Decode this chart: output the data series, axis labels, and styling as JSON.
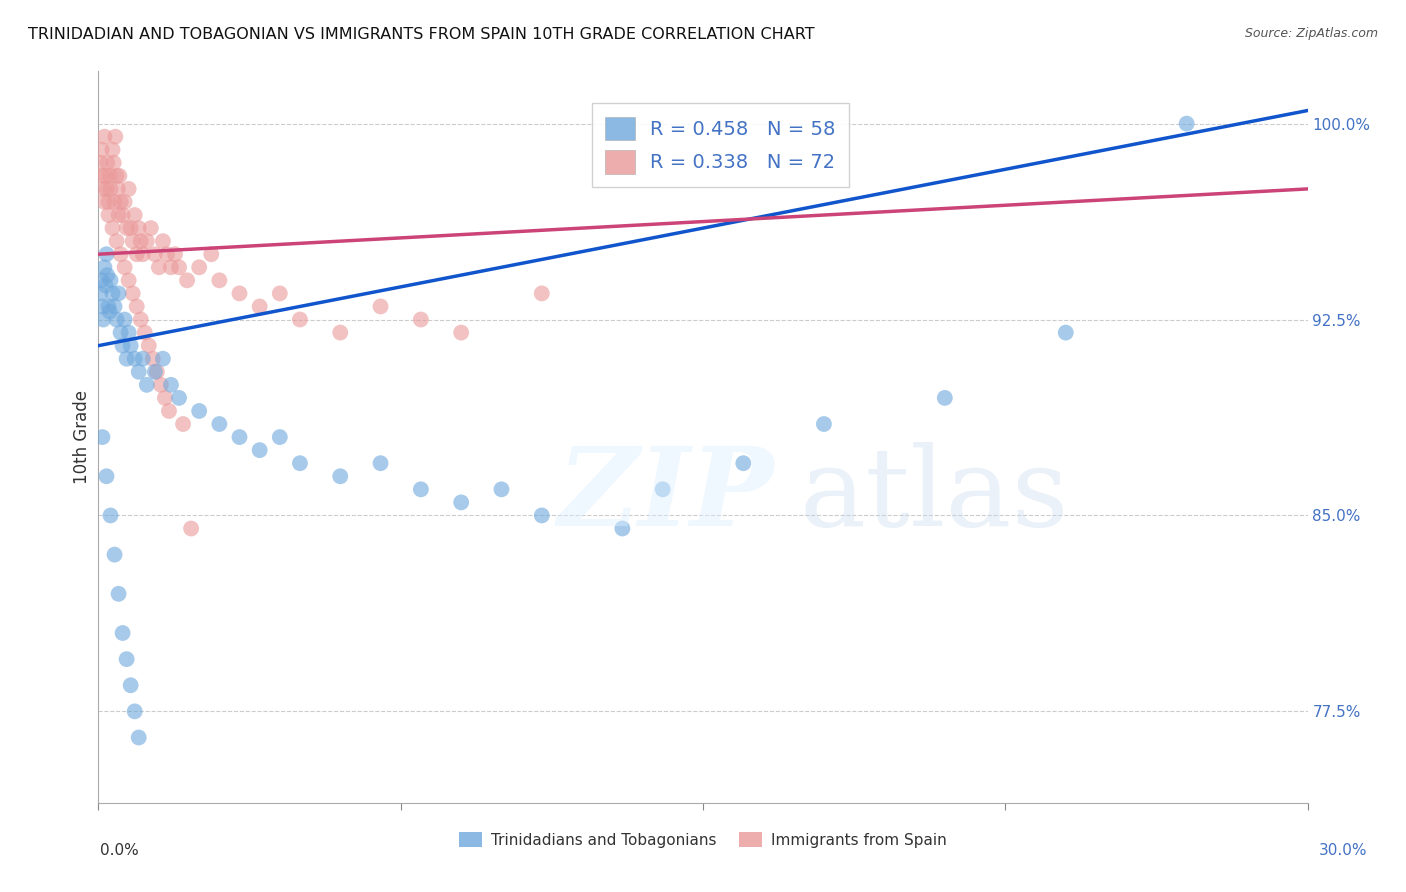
{
  "title": "TRINIDADIAN AND TOBAGONIAN VS IMMIGRANTS FROM SPAIN 10TH GRADE CORRELATION CHART",
  "source": "Source: ZipAtlas.com",
  "ylabel": "10th Grade",
  "xmin": 0.0,
  "xmax": 30.0,
  "ymin": 74.0,
  "ymax": 102.0,
  "yticks": [
    77.5,
    85.0,
    92.5,
    100.0
  ],
  "ytick_labels": [
    "77.5%",
    "85.0%",
    "92.5%",
    "100.0%"
  ],
  "xticks": [
    0.0,
    7.5,
    15.0,
    22.5,
    30.0
  ],
  "blue_color": "#6fa8dc",
  "pink_color": "#ea9999",
  "blue_line_color": "#1155cc",
  "pink_line_color": "#cc4477",
  "legend_blue_label": "R = 0.458   N = 58",
  "legend_pink_label": "R = 0.338   N = 72",
  "blue_bottom_label": "Trinidadians and Tobagonians",
  "pink_bottom_label": "Immigrants from Spain",
  "blue_scatter_x": [
    0.05,
    0.08,
    0.1,
    0.12,
    0.15,
    0.18,
    0.2,
    0.22,
    0.25,
    0.28,
    0.3,
    0.35,
    0.4,
    0.45,
    0.5,
    0.55,
    0.6,
    0.65,
    0.7,
    0.75,
    0.8,
    0.9,
    1.0,
    1.1,
    1.2,
    1.4,
    1.6,
    1.8,
    2.0,
    2.5,
    3.0,
    3.5,
    4.0,
    4.5,
    5.0,
    6.0,
    7.0,
    8.0,
    9.0,
    10.0,
    11.0,
    13.0,
    14.0,
    16.0,
    18.0,
    21.0,
    24.0,
    27.0,
    0.1,
    0.2,
    0.3,
    0.4,
    0.5,
    0.6,
    0.7,
    0.8,
    0.9,
    1.0
  ],
  "blue_scatter_y": [
    93.5,
    94.0,
    93.0,
    92.5,
    94.5,
    93.8,
    95.0,
    94.2,
    93.0,
    92.8,
    94.0,
    93.5,
    93.0,
    92.5,
    93.5,
    92.0,
    91.5,
    92.5,
    91.0,
    92.0,
    91.5,
    91.0,
    90.5,
    91.0,
    90.0,
    90.5,
    91.0,
    90.0,
    89.5,
    89.0,
    88.5,
    88.0,
    87.5,
    88.0,
    87.0,
    86.5,
    87.0,
    86.0,
    85.5,
    86.0,
    85.0,
    84.5,
    86.0,
    87.0,
    88.5,
    89.5,
    92.0,
    100.0,
    88.0,
    86.5,
    85.0,
    83.5,
    82.0,
    80.5,
    79.5,
    78.5,
    77.5,
    76.5
  ],
  "pink_scatter_x": [
    0.05,
    0.08,
    0.1,
    0.12,
    0.15,
    0.18,
    0.2,
    0.22,
    0.25,
    0.28,
    0.3,
    0.35,
    0.38,
    0.4,
    0.42,
    0.45,
    0.48,
    0.5,
    0.52,
    0.55,
    0.6,
    0.65,
    0.7,
    0.75,
    0.8,
    0.85,
    0.9,
    0.95,
    1.0,
    1.05,
    1.1,
    1.2,
    1.3,
    1.4,
    1.5,
    1.6,
    1.7,
    1.8,
    1.9,
    2.0,
    2.2,
    2.5,
    2.8,
    3.0,
    3.5,
    4.0,
    4.5,
    5.0,
    6.0,
    7.0,
    8.0,
    9.0,
    11.0,
    0.15,
    0.25,
    0.35,
    0.45,
    0.55,
    0.65,
    0.75,
    0.85,
    0.95,
    1.05,
    1.15,
    1.25,
    1.35,
    1.45,
    1.55,
    1.65,
    1.75,
    2.1,
    2.3
  ],
  "pink_scatter_y": [
    98.5,
    99.0,
    98.0,
    97.5,
    99.5,
    98.0,
    97.5,
    98.5,
    97.0,
    98.0,
    97.5,
    99.0,
    98.5,
    97.0,
    99.5,
    98.0,
    97.5,
    96.5,
    98.0,
    97.0,
    96.5,
    97.0,
    96.0,
    97.5,
    96.0,
    95.5,
    96.5,
    95.0,
    96.0,
    95.5,
    95.0,
    95.5,
    96.0,
    95.0,
    94.5,
    95.5,
    95.0,
    94.5,
    95.0,
    94.5,
    94.0,
    94.5,
    95.0,
    94.0,
    93.5,
    93.0,
    93.5,
    92.5,
    92.0,
    93.0,
    92.5,
    92.0,
    93.5,
    97.0,
    96.5,
    96.0,
    95.5,
    95.0,
    94.5,
    94.0,
    93.5,
    93.0,
    92.5,
    92.0,
    91.5,
    91.0,
    90.5,
    90.0,
    89.5,
    89.0,
    88.5,
    84.5
  ],
  "blue_line_x0": 0.0,
  "blue_line_y0": 91.5,
  "blue_line_x1": 30.0,
  "blue_line_y1": 100.5,
  "pink_line_x0": 0.0,
  "pink_line_y0": 95.0,
  "pink_line_x1": 30.0,
  "pink_line_y1": 97.5
}
